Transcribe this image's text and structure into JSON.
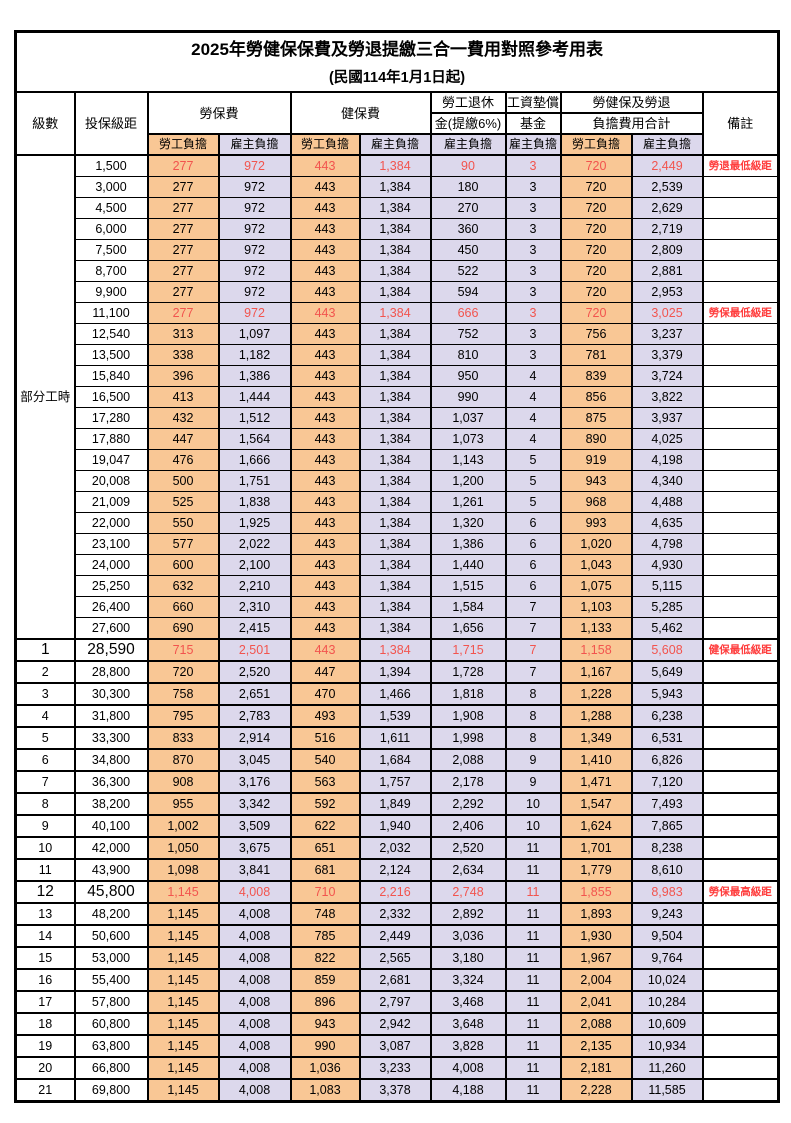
{
  "title": "2025年勞健保保費及勞退提繳三合一費用對照參考用表",
  "subtitle": "(民國114年1月1日起)",
  "header": {
    "level": "級數",
    "bracket": "投保級距",
    "labor_ins": "勞保費",
    "health_ins": "健保費",
    "pension_line1": "勞工退休",
    "pension_line2": "金(提繳6%)",
    "wage_fund_line1": "工資墊償",
    "wage_fund_line2": "基金",
    "total_line1": "勞健保及勞退",
    "total_line2": "負擔費用合計",
    "note": "備註",
    "employee": "勞工負擔",
    "employer": "雇主負擔"
  },
  "group_label": "部分工時",
  "colors": {
    "employee_bg": "#F9C795",
    "employer_bg": "#DCD8EC",
    "value_red": "#F2544E",
    "note_red": "#FF3C3C",
    "border": "#000000"
  },
  "layout": {
    "parttime_rows": 23
  },
  "rows": [
    {
      "level": "",
      "bracket": "1,500",
      "v": [
        "277",
        "972",
        "443",
        "1,384",
        "90",
        "3",
        "720",
        "2,449"
      ],
      "note": "勞退最低級距",
      "red": true,
      "big": false
    },
    {
      "level": "",
      "bracket": "3,000",
      "v": [
        "277",
        "972",
        "443",
        "1,384",
        "180",
        "3",
        "720",
        "2,539"
      ],
      "note": "",
      "red": false,
      "big": false
    },
    {
      "level": "",
      "bracket": "4,500",
      "v": [
        "277",
        "972",
        "443",
        "1,384",
        "270",
        "3",
        "720",
        "2,629"
      ],
      "note": "",
      "red": false,
      "big": false
    },
    {
      "level": "",
      "bracket": "6,000",
      "v": [
        "277",
        "972",
        "443",
        "1,384",
        "360",
        "3",
        "720",
        "2,719"
      ],
      "note": "",
      "red": false,
      "big": false
    },
    {
      "level": "",
      "bracket": "7,500",
      "v": [
        "277",
        "972",
        "443",
        "1,384",
        "450",
        "3",
        "720",
        "2,809"
      ],
      "note": "",
      "red": false,
      "big": false
    },
    {
      "level": "",
      "bracket": "8,700",
      "v": [
        "277",
        "972",
        "443",
        "1,384",
        "522",
        "3",
        "720",
        "2,881"
      ],
      "note": "",
      "red": false,
      "big": false
    },
    {
      "level": "",
      "bracket": "9,900",
      "v": [
        "277",
        "972",
        "443",
        "1,384",
        "594",
        "3",
        "720",
        "2,953"
      ],
      "note": "",
      "red": false,
      "big": false
    },
    {
      "level": "",
      "bracket": "11,100",
      "v": [
        "277",
        "972",
        "443",
        "1,384",
        "666",
        "3",
        "720",
        "3,025"
      ],
      "note": "勞保最低級距",
      "red": true,
      "big": false
    },
    {
      "level": "",
      "bracket": "12,540",
      "v": [
        "313",
        "1,097",
        "443",
        "1,384",
        "752",
        "3",
        "756",
        "3,237"
      ],
      "note": "",
      "red": false,
      "big": false
    },
    {
      "level": "",
      "bracket": "13,500",
      "v": [
        "338",
        "1,182",
        "443",
        "1,384",
        "810",
        "3",
        "781",
        "3,379"
      ],
      "note": "",
      "red": false,
      "big": false
    },
    {
      "level": "",
      "bracket": "15,840",
      "v": [
        "396",
        "1,386",
        "443",
        "1,384",
        "950",
        "4",
        "839",
        "3,724"
      ],
      "note": "",
      "red": false,
      "big": false
    },
    {
      "level": "",
      "bracket": "16,500",
      "v": [
        "413",
        "1,444",
        "443",
        "1,384",
        "990",
        "4",
        "856",
        "3,822"
      ],
      "note": "",
      "red": false,
      "big": false
    },
    {
      "level": "",
      "bracket": "17,280",
      "v": [
        "432",
        "1,512",
        "443",
        "1,384",
        "1,037",
        "4",
        "875",
        "3,937"
      ],
      "note": "",
      "red": false,
      "big": false
    },
    {
      "level": "",
      "bracket": "17,880",
      "v": [
        "447",
        "1,564",
        "443",
        "1,384",
        "1,073",
        "4",
        "890",
        "4,025"
      ],
      "note": "",
      "red": false,
      "big": false
    },
    {
      "level": "",
      "bracket": "19,047",
      "v": [
        "476",
        "1,666",
        "443",
        "1,384",
        "1,143",
        "5",
        "919",
        "4,198"
      ],
      "note": "",
      "red": false,
      "big": false
    },
    {
      "level": "",
      "bracket": "20,008",
      "v": [
        "500",
        "1,751",
        "443",
        "1,384",
        "1,200",
        "5",
        "943",
        "4,340"
      ],
      "note": "",
      "red": false,
      "big": false
    },
    {
      "level": "",
      "bracket": "21,009",
      "v": [
        "525",
        "1,838",
        "443",
        "1,384",
        "1,261",
        "5",
        "968",
        "4,488"
      ],
      "note": "",
      "red": false,
      "big": false
    },
    {
      "level": "",
      "bracket": "22,000",
      "v": [
        "550",
        "1,925",
        "443",
        "1,384",
        "1,320",
        "6",
        "993",
        "4,635"
      ],
      "note": "",
      "red": false,
      "big": false
    },
    {
      "level": "",
      "bracket": "23,100",
      "v": [
        "577",
        "2,022",
        "443",
        "1,384",
        "1,386",
        "6",
        "1,020",
        "4,798"
      ],
      "note": "",
      "red": false,
      "big": false
    },
    {
      "level": "",
      "bracket": "24,000",
      "v": [
        "600",
        "2,100",
        "443",
        "1,384",
        "1,440",
        "6",
        "1,043",
        "4,930"
      ],
      "note": "",
      "red": false,
      "big": false
    },
    {
      "level": "",
      "bracket": "25,250",
      "v": [
        "632",
        "2,210",
        "443",
        "1,384",
        "1,515",
        "6",
        "1,075",
        "5,115"
      ],
      "note": "",
      "red": false,
      "big": false
    },
    {
      "level": "",
      "bracket": "26,400",
      "v": [
        "660",
        "2,310",
        "443",
        "1,384",
        "1,584",
        "7",
        "1,103",
        "5,285"
      ],
      "note": "",
      "red": false,
      "big": false
    },
    {
      "level": "",
      "bracket": "27,600",
      "v": [
        "690",
        "2,415",
        "443",
        "1,384",
        "1,656",
        "7",
        "1,133",
        "5,462"
      ],
      "note": "",
      "red": false,
      "big": false
    },
    {
      "level": "1",
      "bracket": "28,590",
      "v": [
        "715",
        "2,501",
        "443",
        "1,384",
        "1,715",
        "7",
        "1,158",
        "5,608"
      ],
      "note": "健保最低級距",
      "red": true,
      "big": true
    },
    {
      "level": "2",
      "bracket": "28,800",
      "v": [
        "720",
        "2,520",
        "447",
        "1,394",
        "1,728",
        "7",
        "1,167",
        "5,649"
      ],
      "note": "",
      "red": false,
      "big": false
    },
    {
      "level": "3",
      "bracket": "30,300",
      "v": [
        "758",
        "2,651",
        "470",
        "1,466",
        "1,818",
        "8",
        "1,228",
        "5,943"
      ],
      "note": "",
      "red": false,
      "big": false
    },
    {
      "level": "4",
      "bracket": "31,800",
      "v": [
        "795",
        "2,783",
        "493",
        "1,539",
        "1,908",
        "8",
        "1,288",
        "6,238"
      ],
      "note": "",
      "red": false,
      "big": false
    },
    {
      "level": "5",
      "bracket": "33,300",
      "v": [
        "833",
        "2,914",
        "516",
        "1,611",
        "1,998",
        "8",
        "1,349",
        "6,531"
      ],
      "note": "",
      "red": false,
      "big": false
    },
    {
      "level": "6",
      "bracket": "34,800",
      "v": [
        "870",
        "3,045",
        "540",
        "1,684",
        "2,088",
        "9",
        "1,410",
        "6,826"
      ],
      "note": "",
      "red": false,
      "big": false
    },
    {
      "level": "7",
      "bracket": "36,300",
      "v": [
        "908",
        "3,176",
        "563",
        "1,757",
        "2,178",
        "9",
        "1,471",
        "7,120"
      ],
      "note": "",
      "red": false,
      "big": false
    },
    {
      "level": "8",
      "bracket": "38,200",
      "v": [
        "955",
        "3,342",
        "592",
        "1,849",
        "2,292",
        "10",
        "1,547",
        "7,493"
      ],
      "note": "",
      "red": false,
      "big": false
    },
    {
      "level": "9",
      "bracket": "40,100",
      "v": [
        "1,002",
        "3,509",
        "622",
        "1,940",
        "2,406",
        "10",
        "1,624",
        "7,865"
      ],
      "note": "",
      "red": false,
      "big": false
    },
    {
      "level": "10",
      "bracket": "42,000",
      "v": [
        "1,050",
        "3,675",
        "651",
        "2,032",
        "2,520",
        "11",
        "1,701",
        "8,238"
      ],
      "note": "",
      "red": false,
      "big": false
    },
    {
      "level": "11",
      "bracket": "43,900",
      "v": [
        "1,098",
        "3,841",
        "681",
        "2,124",
        "2,634",
        "11",
        "1,779",
        "8,610"
      ],
      "note": "",
      "red": false,
      "big": false
    },
    {
      "level": "12",
      "bracket": "45,800",
      "v": [
        "1,145",
        "4,008",
        "710",
        "2,216",
        "2,748",
        "11",
        "1,855",
        "8,983"
      ],
      "note": "勞保最高級距",
      "red": true,
      "big": true
    },
    {
      "level": "13",
      "bracket": "48,200",
      "v": [
        "1,145",
        "4,008",
        "748",
        "2,332",
        "2,892",
        "11",
        "1,893",
        "9,243"
      ],
      "note": "",
      "red": false,
      "big": false
    },
    {
      "level": "14",
      "bracket": "50,600",
      "v": [
        "1,145",
        "4,008",
        "785",
        "2,449",
        "3,036",
        "11",
        "1,930",
        "9,504"
      ],
      "note": "",
      "red": false,
      "big": false
    },
    {
      "level": "15",
      "bracket": "53,000",
      "v": [
        "1,145",
        "4,008",
        "822",
        "2,565",
        "3,180",
        "11",
        "1,967",
        "9,764"
      ],
      "note": "",
      "red": false,
      "big": false
    },
    {
      "level": "16",
      "bracket": "55,400",
      "v": [
        "1,145",
        "4,008",
        "859",
        "2,681",
        "3,324",
        "11",
        "2,004",
        "10,024"
      ],
      "note": "",
      "red": false,
      "big": false
    },
    {
      "level": "17",
      "bracket": "57,800",
      "v": [
        "1,145",
        "4,008",
        "896",
        "2,797",
        "3,468",
        "11",
        "2,041",
        "10,284"
      ],
      "note": "",
      "red": false,
      "big": false
    },
    {
      "level": "18",
      "bracket": "60,800",
      "v": [
        "1,145",
        "4,008",
        "943",
        "2,942",
        "3,648",
        "11",
        "2,088",
        "10,609"
      ],
      "note": "",
      "red": false,
      "big": false
    },
    {
      "level": "19",
      "bracket": "63,800",
      "v": [
        "1,145",
        "4,008",
        "990",
        "3,087",
        "3,828",
        "11",
        "2,135",
        "10,934"
      ],
      "note": "",
      "red": false,
      "big": false
    },
    {
      "level": "20",
      "bracket": "66,800",
      "v": [
        "1,145",
        "4,008",
        "1,036",
        "3,233",
        "4,008",
        "11",
        "2,181",
        "11,260"
      ],
      "note": "",
      "red": false,
      "big": false
    },
    {
      "level": "21",
      "bracket": "69,800",
      "v": [
        "1,145",
        "4,008",
        "1,083",
        "3,378",
        "4,188",
        "11",
        "2,228",
        "11,585"
      ],
      "note": "",
      "red": false,
      "big": false
    }
  ]
}
